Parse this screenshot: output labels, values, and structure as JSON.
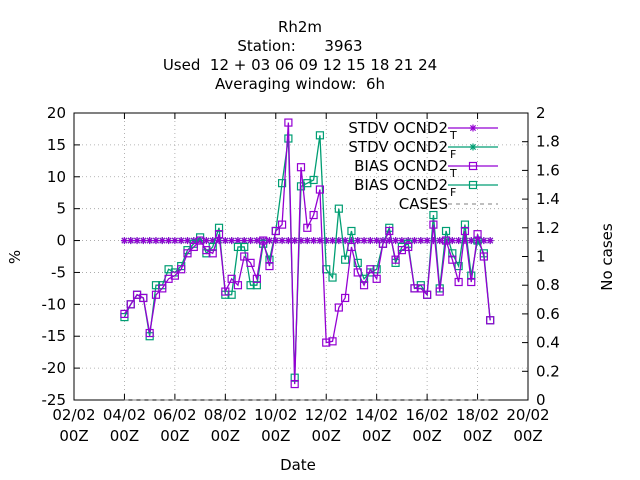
{
  "chart_data": {
    "type": "line",
    "title_lines": [
      "Rh2m",
      "Station:      3963",
      "Used  12 + 03 06 09 12 15 18 21 24",
      "Averaging window:  6h"
    ],
    "xlabel": "Date",
    "ylabel": "%",
    "y2label": "No cases",
    "xticks": [
      {
        "d": "02/02",
        "t": "00Z",
        "v": 2
      },
      {
        "d": "04/02",
        "t": "00Z",
        "v": 4
      },
      {
        "d": "06/02",
        "t": "00Z",
        "v": 6
      },
      {
        "d": "08/02",
        "t": "00Z",
        "v": 8
      },
      {
        "d": "10/02",
        "t": "00Z",
        "v": 10
      },
      {
        "d": "12/02",
        "t": "00Z",
        "v": 12
      },
      {
        "d": "14/02",
        "t": "00Z",
        "v": 14
      },
      {
        "d": "16/02",
        "t": "00Z",
        "v": 16
      },
      {
        "d": "18/02",
        "t": "00Z",
        "v": 18
      },
      {
        "d": "20/02",
        "t": "00Z",
        "v": 20
      }
    ],
    "xlim": [
      2,
      20
    ],
    "ylim": [
      -25,
      20
    ],
    "yticks": [
      -25,
      -20,
      -15,
      -10,
      -5,
      0,
      5,
      10,
      15,
      20
    ],
    "y2lim": [
      0,
      2
    ],
    "y2ticks": [
      0,
      0.2,
      0.4,
      0.6,
      0.8,
      1,
      1.2,
      1.4,
      1.6,
      1.8,
      2
    ],
    "legend_position": "top-right",
    "series": [
      {
        "name": "STDV OCND2",
        "sub": "T",
        "style": "points",
        "marker": "asterisk",
        "color": "#9400d3",
        "x": [
          4.0,
          4.25,
          4.5,
          4.75,
          5.0,
          5.25,
          5.5,
          5.75,
          6.0,
          6.25,
          6.5,
          6.75,
          7.0,
          7.25,
          7.5,
          7.75,
          8.0,
          8.25,
          8.5,
          8.75,
          9.0,
          9.25,
          9.5,
          9.75,
          10.0,
          10.25,
          10.5,
          10.75,
          11.0,
          11.25,
          11.5,
          11.75,
          12.0,
          12.25,
          12.5,
          12.75,
          13.0,
          13.25,
          13.5,
          13.75,
          14.0,
          14.25,
          14.5,
          14.75,
          15.0,
          15.25,
          15.5,
          15.75,
          16.0,
          16.25,
          16.5,
          16.75,
          17.0,
          17.25,
          17.5,
          17.75,
          18.0,
          18.25,
          18.5
        ],
        "values": [
          0,
          0,
          0,
          0,
          0,
          0,
          0,
          0,
          0,
          0,
          0,
          0,
          0,
          0,
          0,
          0,
          0,
          0,
          0,
          0,
          0,
          0,
          0,
          0,
          0,
          0,
          0,
          0,
          0,
          0,
          0,
          0,
          0,
          0,
          0,
          0,
          0,
          0,
          0,
          0,
          0,
          0,
          0,
          0,
          0,
          0,
          0,
          0,
          0,
          0,
          0,
          0,
          0,
          0,
          0,
          0,
          0,
          0,
          0
        ]
      },
      {
        "name": "STDV OCND2",
        "sub": "F",
        "style": "points",
        "marker": "asterisk",
        "color": "#009e73",
        "x": [
          4.0,
          4.25,
          4.5,
          4.75,
          5.0,
          5.25,
          5.5,
          5.75,
          6.0,
          6.25,
          6.5,
          6.75,
          7.0,
          7.25,
          7.5,
          7.75,
          8.0,
          8.25,
          8.5,
          8.75,
          9.0,
          9.25,
          9.5,
          9.75,
          10.0,
          10.25,
          10.5,
          10.75,
          11.0,
          11.25,
          11.5,
          11.75,
          12.0,
          12.25,
          12.5,
          12.75,
          13.0,
          13.25,
          13.5,
          13.75,
          14.0,
          14.25,
          14.5,
          14.75,
          15.0,
          15.25,
          15.5,
          15.75,
          16.0,
          16.25,
          16.5,
          16.75,
          17.0,
          17.25,
          17.5,
          17.75,
          18.0,
          18.25,
          18.5
        ],
        "values": [
          0,
          0,
          0,
          0,
          0,
          0,
          0,
          0,
          0,
          0,
          0,
          0,
          0,
          0,
          0,
          0,
          0,
          0,
          0,
          0,
          0,
          0,
          0,
          0,
          0,
          0,
          0,
          0,
          0,
          0,
          0,
          0,
          0,
          0,
          0,
          0,
          0,
          0,
          0,
          0,
          0,
          0,
          0,
          0,
          0,
          0,
          0,
          0,
          0,
          0,
          0,
          0,
          0,
          0,
          0,
          0,
          0,
          0,
          0
        ]
      },
      {
        "name": "BIAS OCND2",
        "sub": "T",
        "style": "linespoints",
        "marker": "square",
        "color": "#9400d3",
        "x": [
          4.0,
          4.25,
          4.5,
          4.75,
          5.0,
          5.25,
          5.5,
          5.75,
          6.0,
          6.25,
          6.5,
          6.75,
          7.0,
          7.25,
          7.5,
          7.75,
          8.0,
          8.25,
          8.5,
          8.75,
          9.0,
          9.25,
          9.5,
          9.75,
          10.0,
          10.25,
          10.5,
          10.75,
          11.0,
          11.25,
          11.5,
          11.75,
          12.0,
          12.25,
          12.5,
          12.75,
          13.0,
          13.25,
          13.5,
          13.75,
          14.0,
          14.25,
          14.5,
          14.75,
          15.0,
          15.25,
          15.5,
          15.75,
          16.0,
          16.25,
          16.5,
          16.75,
          17.0,
          17.25,
          17.5,
          17.75,
          18.0,
          18.25,
          18.5
        ],
        "values": [
          -11.5,
          -10,
          -8.5,
          -9,
          -14.5,
          -8.5,
          -7.5,
          -6,
          -5.5,
          -4.5,
          -2,
          -1,
          0,
          -1.5,
          -2,
          1,
          -8,
          -6,
          -7,
          -2.5,
          -3.5,
          -6,
          0,
          -4,
          1.5,
          2.5,
          18.5,
          -22.5,
          11.5,
          2,
          4,
          8,
          -16,
          -15.8,
          -10.5,
          -9,
          -1,
          -5,
          -7,
          -4.5,
          -6,
          -0.5,
          1.5,
          -3,
          -1.5,
          -1,
          -7.5,
          -7.5,
          -8.5,
          2.5,
          -8,
          0,
          -3,
          -6.5,
          1.5,
          -6.5,
          1,
          -2.5,
          -12.5
        ]
      },
      {
        "name": "BIAS OCND2",
        "sub": "F",
        "style": "linespoints",
        "marker": "square",
        "color": "#009e73",
        "x": [
          4.0,
          4.25,
          4.5,
          4.75,
          5.0,
          5.25,
          5.5,
          5.75,
          6.0,
          6.25,
          6.5,
          6.75,
          7.0,
          7.25,
          7.5,
          7.75,
          8.0,
          8.25,
          8.5,
          8.75,
          9.0,
          9.25,
          9.5,
          9.75,
          10.0,
          10.25,
          10.5,
          10.75,
          11.0,
          11.25,
          11.5,
          11.75,
          12.0,
          12.25,
          12.5,
          12.75,
          13.0,
          13.25,
          13.5,
          13.75,
          14.0,
          14.25,
          14.5,
          14.75,
          15.0,
          15.25,
          15.5,
          15.75,
          16.0,
          16.25,
          16.5,
          16.75,
          17.0,
          17.25,
          17.5,
          17.75,
          18.0,
          18.25,
          18.5
        ],
        "values": [
          -12,
          -10,
          -8.5,
          -9,
          -15,
          -7,
          -7,
          -4.5,
          -5,
          -4,
          -1.5,
          -0.5,
          0.5,
          -2,
          -1,
          2,
          -8.5,
          -8.5,
          -1,
          -1,
          -7,
          -7,
          -0.5,
          -3,
          1.5,
          9,
          16,
          -21.5,
          8.5,
          9,
          9.5,
          16.5,
          -4.5,
          -5.8,
          5,
          -3,
          1.5,
          -3.5,
          -6,
          -5,
          -4.5,
          -0.5,
          2,
          -3.5,
          -1,
          -0.5,
          -7.5,
          -7,
          -8.5,
          4,
          -7.5,
          1.5,
          -2,
          -4,
          2.5,
          -5.5,
          0,
          -2,
          -12.5
        ]
      },
      {
        "name": "CASES",
        "sub": "",
        "style": "lines",
        "marker": "none",
        "color": "#999999",
        "x": [
          4.0,
          18.5
        ],
        "values": [
          0,
          0
        ]
      }
    ]
  }
}
